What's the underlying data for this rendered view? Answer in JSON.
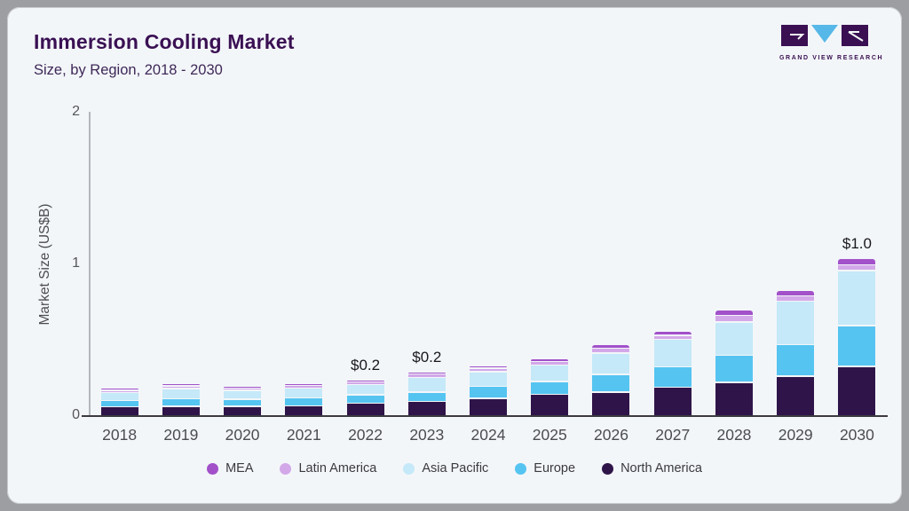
{
  "header": {
    "title": "Immersion Cooling Market",
    "subtitle": "Size, by Region, 2018 - 2030"
  },
  "logo": {
    "brand": "GRAND VIEW RESEARCH",
    "dark_color": "#3a1053",
    "accent_color": "#56b8e8"
  },
  "y_axis": {
    "title": "Market Size (US$B)",
    "ticks": [
      "0",
      "1",
      "2"
    ]
  },
  "chart_data": {
    "type": "bar",
    "stacked": true,
    "title": "Immersion Cooling Market",
    "subtitle": "Size, by Region, 2018 - 2030",
    "xlabel": "",
    "ylabel": "Market Size (US$B)",
    "ylim": [
      0,
      2
    ],
    "yticks": [
      0,
      1,
      2
    ],
    "grid": false,
    "legend_position": "bottom",
    "categories": [
      "2018",
      "2019",
      "2020",
      "2021",
      "2022",
      "2023",
      "2024",
      "2025",
      "2026",
      "2027",
      "2028",
      "2029",
      "2030"
    ],
    "series": [
      {
        "name": "North America",
        "color": "#2f1449",
        "values": [
          0.05,
          0.055,
          0.055,
          0.058,
          0.075,
          0.085,
          0.108,
          0.132,
          0.148,
          0.181,
          0.211,
          0.253,
          0.316
        ]
      },
      {
        "name": "Europe",
        "color": "#55c4f1",
        "values": [
          0.033,
          0.04,
          0.037,
          0.043,
          0.047,
          0.055,
          0.068,
          0.078,
          0.107,
          0.126,
          0.17,
          0.199,
          0.263
        ]
      },
      {
        "name": "Asia Pacific",
        "color": "#c5e9f8",
        "values": [
          0.045,
          0.06,
          0.05,
          0.057,
          0.058,
          0.088,
          0.088,
          0.098,
          0.133,
          0.17,
          0.21,
          0.279,
          0.351
        ]
      },
      {
        "name": "Latin America",
        "color": "#d3a8e9",
        "values": [
          0.004,
          0.008,
          0.006,
          0.008,
          0.01,
          0.012,
          0.014,
          0.015,
          0.023,
          0.02,
          0.037,
          0.025,
          0.03
        ]
      },
      {
        "name": "MEA",
        "color": "#a251c9",
        "values": [
          0.002,
          0.004,
          0.003,
          0.005,
          0.006,
          0.007,
          0.01,
          0.012,
          0.016,
          0.019,
          0.025,
          0.03,
          0.035
        ]
      }
    ],
    "value_labels": {
      "2022": "$0.2",
      "2023": "$0.2",
      "2030": "$1.0"
    },
    "legend": [
      "MEA",
      "Latin America",
      "Asia Pacific",
      "Europe",
      "North America"
    ]
  }
}
